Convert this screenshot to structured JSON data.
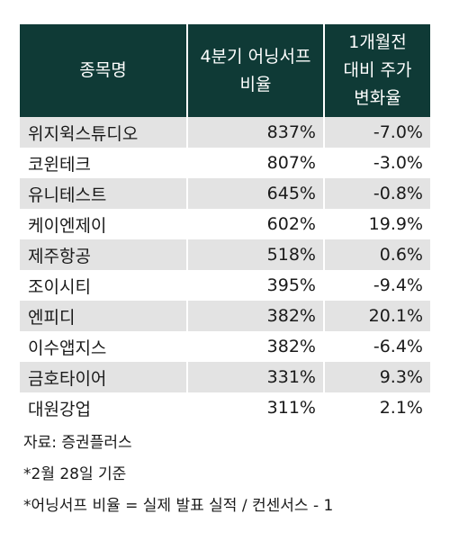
{
  "table": {
    "headers": [
      {
        "lines": [
          "종목명"
        ]
      },
      {
        "lines": [
          "4분기 어닝서프",
          "비율"
        ]
      },
      {
        "lines": [
          "1개월전",
          "대비 주가",
          "변화율"
        ]
      }
    ],
    "rows": [
      {
        "name": "위지윅스튜디오",
        "ratio": "837%",
        "change": "-7.0%"
      },
      {
        "name": "코윈테크",
        "ratio": "807%",
        "change": "-3.0%"
      },
      {
        "name": "유니테스트",
        "ratio": "645%",
        "change": "-0.8%"
      },
      {
        "name": "케이엔제이",
        "ratio": "602%",
        "change": "19.9%"
      },
      {
        "name": "제주항공",
        "ratio": "518%",
        "change": "0.6%"
      },
      {
        "name": "조이시티",
        "ratio": "395%",
        "change": "-9.4%"
      },
      {
        "name": "엔피디",
        "ratio": "382%",
        "change": "20.1%"
      },
      {
        "name": "이수앱지스",
        "ratio": "382%",
        "change": "-6.4%"
      },
      {
        "name": "금호타이어",
        "ratio": "331%",
        "change": "9.3%"
      },
      {
        "name": "대원강업",
        "ratio": "311%",
        "change": "2.1%"
      }
    ]
  },
  "notes": {
    "source": "자료: 증권플러스",
    "date": "*2월 28일 기준",
    "definition": "*어닝서프 비율 = 실제 발표 실적 / 컨센서스 - 1"
  },
  "colors": {
    "header_bg": "#0f3a36",
    "stripe": "#e3e3e3"
  }
}
